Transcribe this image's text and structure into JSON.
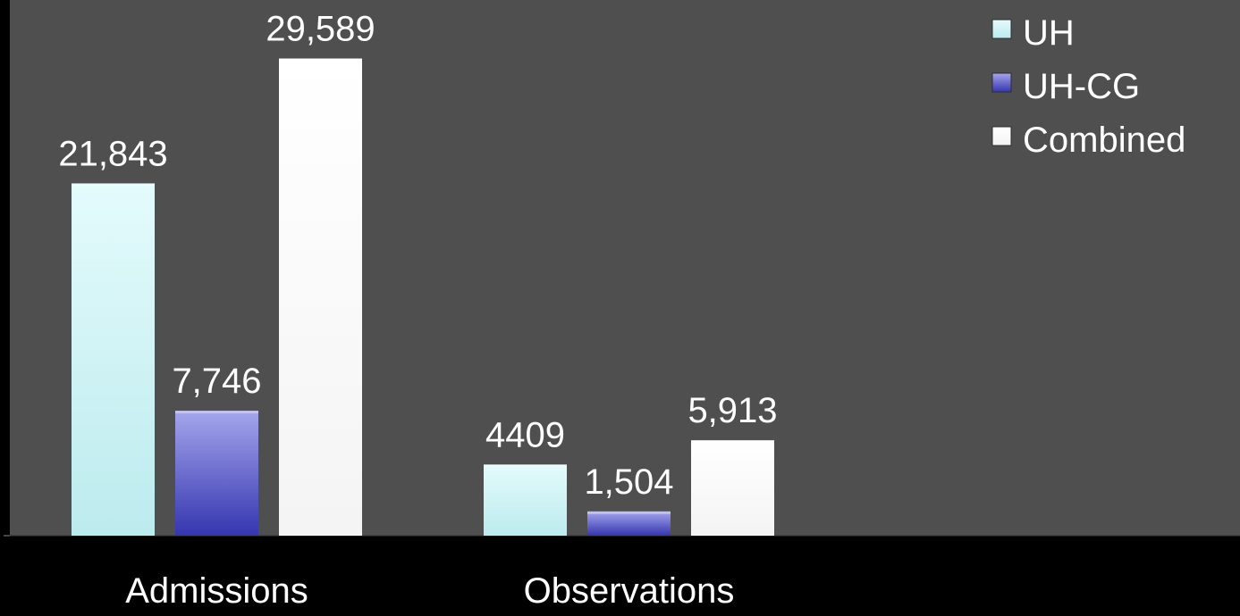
{
  "chart_data": {
    "type": "bar",
    "categories": [
      "Admissions",
      "Observations"
    ],
    "series": [
      {
        "name": "UH",
        "values": [
          21843,
          4409
        ],
        "labels": [
          "21,843",
          "4409"
        ],
        "color": "#c4f0f2"
      },
      {
        "name": "UH-CG",
        "values": [
          7746,
          1504
        ],
        "labels": [
          "7,746",
          "1,504"
        ],
        "color": "#4b4cc4"
      },
      {
        "name": "Combined",
        "values": [
          29589,
          5913
        ],
        "labels": [
          "29,589",
          "5,913"
        ],
        "color": "#ffffff"
      }
    ],
    "ylim": [
      0,
      32000
    ],
    "legend_position": "top-right",
    "grid": false,
    "plot_background": "#4f4f4f",
    "page_background": "#000000",
    "text_color": "#ffffff"
  }
}
